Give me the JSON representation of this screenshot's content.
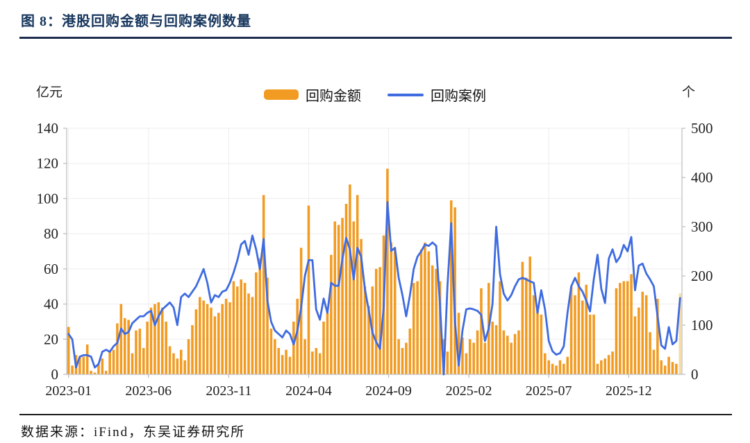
{
  "figure": {
    "title": "图 8：港股回购金额与回购案例数量",
    "source": "数据来源：iFind，东吴证券研究所"
  },
  "legend": {
    "bar_label": "回购金额",
    "line_label": "回购案例"
  },
  "units": {
    "left": "亿元",
    "right": "个"
  },
  "colors": {
    "bar": "#F29B22",
    "bar_last": "#F6DCA6",
    "line": "#3E6BE0",
    "title_navy": "#17365D",
    "axis_gray": "#bfbfbf",
    "grid_gray": "#ededed",
    "tick_text": "#1f1f1f"
  },
  "chart_data": {
    "type": "bar+line",
    "frequency": "weekly",
    "title": "港股回购金额与回购案例数量",
    "x_tick_labels": [
      "2023-01",
      "2023-06",
      "2023-11",
      "2024-04",
      "2024-09",
      "2025-02",
      "2025-07",
      "2025-12"
    ],
    "x_tick_week_positions": [
      0,
      21.3,
      42.7,
      64.0,
      85.3,
      106.7,
      128.0,
      149.3
    ],
    "left_axis": {
      "label": "亿元",
      "min": 0,
      "max": 140,
      "ticks": [
        0,
        20,
        40,
        60,
        80,
        100,
        120,
        140
      ]
    },
    "right_axis": {
      "label": "个",
      "min": 0,
      "max": 500,
      "ticks": [
        0,
        100,
        200,
        300,
        400,
        500
      ]
    },
    "grid": "faint horizontal + vertical at x ticks",
    "legend_position": "top-center",
    "series": [
      {
        "name": "回购金额",
        "type": "bar",
        "axis": "left",
        "color": "#F29B22",
        "last_point_color": "#F6DCA6",
        "values": [
          27,
          5,
          11,
          10,
          10,
          17,
          2,
          1,
          6,
          9,
          2,
          13,
          14,
          29,
          40,
          32,
          31,
          12,
          25,
          26,
          15,
          30,
          38,
          40,
          41,
          38,
          30,
          16,
          12,
          9,
          14,
          8,
          20,
          28,
          37,
          44,
          42,
          40,
          38,
          33,
          35,
          40,
          43,
          41,
          53,
          50,
          54,
          52,
          46,
          44,
          58,
          66,
          102,
          55,
          26,
          20,
          15,
          11,
          14,
          10,
          30,
          43,
          72,
          20,
          96,
          13,
          15,
          12,
          30,
          35,
          68,
          87,
          85,
          89,
          97,
          108,
          87,
          102,
          77,
          50,
          39,
          50,
          60,
          61,
          79,
          117,
          75,
          72,
          20,
          15,
          18,
          26,
          52,
          53,
          71,
          75,
          70,
          62,
          60,
          53,
          20,
          13,
          99,
          95,
          35,
          21,
          12,
          20,
          18,
          25,
          49,
          18,
          52,
          30,
          28,
          53,
          25,
          22,
          18,
          23,
          25,
          64,
          55,
          67,
          45,
          38,
          34,
          12,
          8,
          6,
          5,
          8,
          6,
          10,
          50,
          45,
          58,
          42,
          51,
          34,
          34,
          6,
          8,
          9,
          11,
          13,
          49,
          52,
          53,
          53,
          57,
          33,
          38,
          47,
          45,
          24,
          14,
          43,
          8,
          5,
          10,
          7,
          6,
          46
        ]
      },
      {
        "name": "回购案例",
        "type": "line",
        "axis": "right",
        "color": "#3E6BE0",
        "values": [
          82,
          71,
          14,
          36,
          39,
          39,
          36,
          14,
          21,
          46,
          50,
          46,
          57,
          64,
          93,
          82,
          86,
          104,
          111,
          118,
          118,
          125,
          129,
          100,
          118,
          132,
          139,
          146,
          136,
          100,
          157,
          164,
          157,
          168,
          179,
          196,
          214,
          186,
          146,
          161,
          157,
          168,
          171,
          186,
          207,
          232,
          264,
          271,
          243,
          282,
          254,
          214,
          275,
          150,
          107,
          89,
          82,
          75,
          89,
          82,
          61,
          89,
          136,
          200,
          232,
          232,
          132,
          111,
          154,
          125,
          186,
          180,
          180,
          235,
          277,
          254,
          193,
          257,
          239,
          173,
          131,
          85,
          66,
          52,
          136,
          350,
          251,
          257,
          196,
          161,
          118,
          161,
          214,
          239,
          250,
          264,
          261,
          268,
          261,
          143,
          0,
          179,
          307,
          107,
          18,
          89,
          132,
          134,
          132,
          129,
          121,
          68,
          93,
          143,
          300,
          204,
          164,
          150,
          161,
          179,
          193,
          196,
          193,
          189,
          186,
          125,
          171,
          132,
          68,
          47,
          40,
          43,
          57,
          125,
          179,
          196,
          179,
          168,
          150,
          128,
          193,
          243,
          174,
          145,
          235,
          254,
          228,
          239,
          263,
          250,
          279,
          171,
          221,
          225,
          205,
          193,
          179,
          118,
          59,
          52,
          96,
          61,
          68,
          155
        ]
      }
    ]
  }
}
